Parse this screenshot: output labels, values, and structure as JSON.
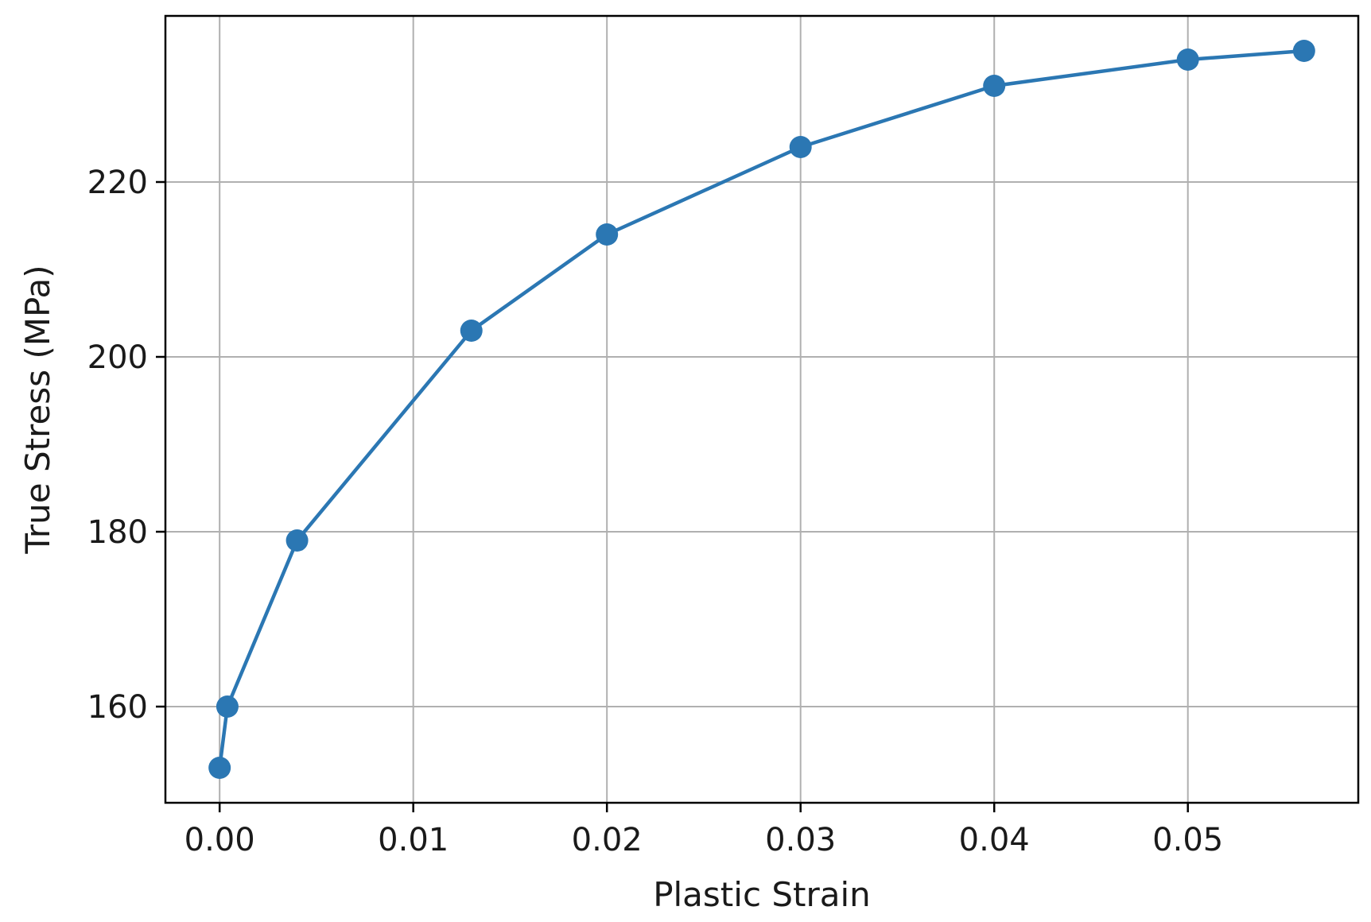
{
  "chart_data": {
    "type": "line",
    "title": "",
    "xlabel": "Plastic Strain",
    "ylabel": "True Stress (MPa)",
    "xlim": [
      -0.0028,
      0.0588
    ],
    "ylim": [
      149,
      239
    ],
    "xticks": [
      0.0,
      0.01,
      0.02,
      0.03,
      0.04,
      0.05
    ],
    "xtick_labels": [
      "0.00",
      "0.01",
      "0.02",
      "0.03",
      "0.04",
      "0.05"
    ],
    "yticks": [
      160,
      180,
      200,
      220
    ],
    "ytick_labels": [
      "160",
      "180",
      "200",
      "220"
    ],
    "grid": true,
    "series": [
      {
        "x": [
          0.0,
          0.0004,
          0.004,
          0.013,
          0.02,
          0.03,
          0.04,
          0.05,
          0.056
        ],
        "y": [
          153,
          160,
          179,
          203,
          214,
          224,
          231,
          234,
          235
        ],
        "color": "#2b77b3",
        "marker": "circle"
      }
    ]
  }
}
